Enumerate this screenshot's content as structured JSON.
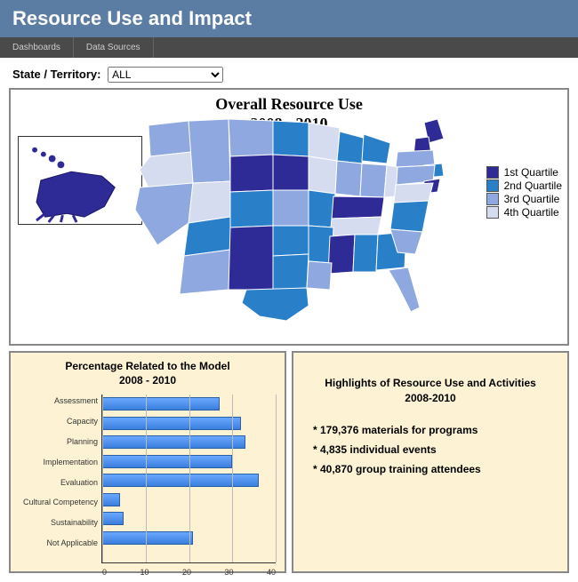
{
  "header": {
    "title": "Resource Use and Impact"
  },
  "nav": {
    "items": [
      "Dashboards",
      "Data Sources"
    ]
  },
  "filter": {
    "label": "State / Territory:",
    "selected": "ALL"
  },
  "map": {
    "title_line1": "Overall Resource Use",
    "title_line2": "2008 - 2010",
    "quartile_colors": {
      "q1": "#2e2a96",
      "q2": "#2a7fc9",
      "q3": "#8fa8e0",
      "q4": "#d5dcf0"
    },
    "legend": [
      {
        "label": "1st Quartile",
        "color": "#2e2a96"
      },
      {
        "label": "2nd Quartile",
        "color": "#2a7fc9"
      },
      {
        "label": "3rd Quartile",
        "color": "#8fa8e0"
      },
      {
        "label": "4th Quartile",
        "color": "#d5dcf0"
      }
    ]
  },
  "chart": {
    "title_line1": "Percentage Related to the Model",
    "title_line2": "2008 - 2010",
    "x_max": 40,
    "x_tick_step": 10,
    "x_ticks": [
      "0",
      "10",
      "20",
      "30",
      "40"
    ],
    "bar_color": "#3a7edc",
    "series": [
      {
        "label": "Assessment",
        "value": 27
      },
      {
        "label": "Capacity",
        "value": 32
      },
      {
        "label": "Planning",
        "value": 33
      },
      {
        "label": "Implementation",
        "value": 30
      },
      {
        "label": "Evaluation",
        "value": 36
      },
      {
        "label": "Cultural Competency",
        "value": 4
      },
      {
        "label": "Sustainability",
        "value": 5
      },
      {
        "label": "Not Applicable",
        "value": 21
      }
    ]
  },
  "highlights": {
    "title_line1": "Highlights of Resource Use and Activities",
    "title_line2": "2008-2010",
    "items": [
      "* 179,376 materials for programs",
      "* 4,835 individual events",
      "* 40,870 group training attendees"
    ]
  }
}
